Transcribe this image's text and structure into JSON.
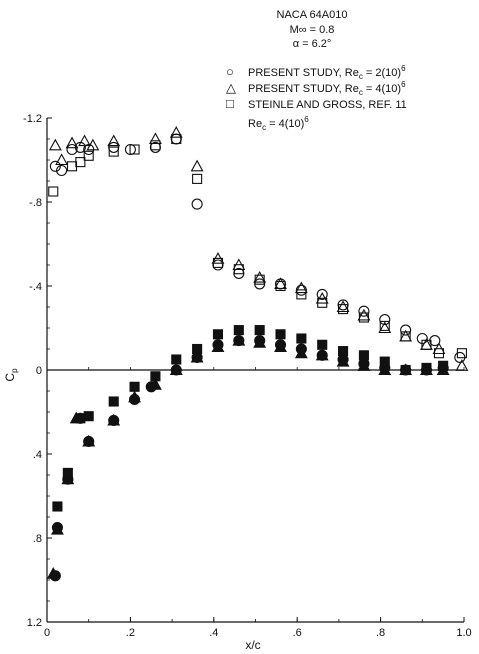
{
  "chart_data": {
    "type": "scatter",
    "title_lines": [
      "NACA 64A010",
      "M∞ = 0.8",
      "α = 6.2°"
    ],
    "xlabel": "x/c",
    "ylabel": "Cp",
    "xlim": [
      0,
      1.0
    ],
    "ylim": [
      1.2,
      -1.2
    ],
    "y_inverted": true,
    "x_ticks": [
      {
        "value": 0,
        "label": "0"
      },
      {
        "value": 0.2,
        "label": ".2"
      },
      {
        "value": 0.4,
        "label": ".4"
      },
      {
        "value": 0.6,
        "label": ".6"
      },
      {
        "value": 0.8,
        "label": ".8"
      },
      {
        "value": 1.0,
        "label": "1.0"
      }
    ],
    "y_ticks": [
      {
        "value": -1.2,
        "label": "-1.2"
      },
      {
        "value": -0.8,
        "label": "-.8"
      },
      {
        "value": -0.4,
        "label": "-.4"
      },
      {
        "value": 0,
        "label": "0"
      },
      {
        "value": 0.4,
        "label": ".4"
      },
      {
        "value": 0.8,
        "label": ".8"
      },
      {
        "value": 1.2,
        "label": "1.2"
      }
    ],
    "legend": [
      {
        "symbol": "○",
        "text": "PRESENT STUDY, Re",
        "sub": "c",
        "rest": " = 2(10)",
        "sup": "6"
      },
      {
        "symbol": "△",
        "text": "PRESENT STUDY, Re",
        "sub": "c",
        "rest": " = 4(10)",
        "sup": "6"
      },
      {
        "symbol": "□",
        "text": "STEINLE AND GROSS, REF. 11",
        "sub": "",
        "rest": "",
        "sup": ""
      },
      {
        "symbol": "",
        "text": "Re",
        "sub": "c",
        "rest": " = 4(10)",
        "sup": "6"
      }
    ],
    "legend_position": "top-right",
    "series": [
      {
        "name": "PRESENT STUDY, Re_c = 2(10)^6",
        "marker": "circle",
        "upper": [
          [
            0.02,
            -0.97
          ],
          [
            0.035,
            -0.95
          ],
          [
            0.06,
            -1.05
          ],
          [
            0.08,
            -1.06
          ],
          [
            0.1,
            -1.05
          ],
          [
            0.16,
            -1.06
          ],
          [
            0.2,
            -1.05
          ],
          [
            0.26,
            -1.06
          ],
          [
            0.31,
            -1.1
          ],
          [
            0.36,
            -0.79
          ],
          [
            0.41,
            -0.5
          ],
          [
            0.46,
            -0.46
          ],
          [
            0.51,
            -0.41
          ],
          [
            0.56,
            -0.41
          ],
          [
            0.61,
            -0.38
          ],
          [
            0.66,
            -0.36
          ],
          [
            0.71,
            -0.31
          ],
          [
            0.76,
            -0.28
          ],
          [
            0.81,
            -0.24
          ],
          [
            0.86,
            -0.19
          ],
          [
            0.9,
            -0.15
          ],
          [
            0.93,
            -0.14
          ],
          [
            0.99,
            -0.06
          ]
        ],
        "lower": [
          [
            0.02,
            0.98
          ],
          [
            0.025,
            0.75
          ],
          [
            0.05,
            0.52
          ],
          [
            0.08,
            0.23
          ],
          [
            0.1,
            0.34
          ],
          [
            0.16,
            0.24
          ],
          [
            0.21,
            0.14
          ],
          [
            0.25,
            0.08
          ],
          [
            0.31,
            0.0
          ],
          [
            0.36,
            -0.06
          ],
          [
            0.41,
            -0.12
          ],
          [
            0.46,
            -0.14
          ],
          [
            0.51,
            -0.14
          ],
          [
            0.56,
            -0.12
          ],
          [
            0.61,
            -0.1
          ],
          [
            0.66,
            -0.07
          ],
          [
            0.71,
            -0.05
          ],
          [
            0.76,
            -0.03
          ],
          [
            0.81,
            -0.01
          ],
          [
            0.86,
            0.0
          ],
          [
            0.91,
            0.0
          ],
          [
            0.95,
            -0.01
          ]
        ]
      },
      {
        "name": "PRESENT STUDY, Re_c = 4(10)^6",
        "marker": "triangle",
        "upper": [
          [
            0.02,
            -1.07
          ],
          [
            0.035,
            -1.0
          ],
          [
            0.06,
            -1.08
          ],
          [
            0.09,
            -1.09
          ],
          [
            0.11,
            -1.07
          ],
          [
            0.16,
            -1.09
          ],
          [
            0.26,
            -1.1
          ],
          [
            0.31,
            -1.13
          ],
          [
            0.36,
            -0.97
          ],
          [
            0.41,
            -0.53
          ],
          [
            0.46,
            -0.5
          ],
          [
            0.51,
            -0.44
          ],
          [
            0.56,
            -0.41
          ],
          [
            0.61,
            -0.39
          ],
          [
            0.66,
            -0.34
          ],
          [
            0.71,
            -0.3
          ],
          [
            0.76,
            -0.26
          ],
          [
            0.81,
            -0.2
          ],
          [
            0.86,
            -0.16
          ],
          [
            0.91,
            -0.12
          ],
          [
            0.94,
            -0.1
          ],
          [
            0.995,
            -0.02
          ]
        ],
        "lower": [
          [
            0.015,
            0.97
          ],
          [
            0.025,
            0.76
          ],
          [
            0.05,
            0.52
          ],
          [
            0.07,
            0.23
          ],
          [
            0.1,
            0.34
          ],
          [
            0.16,
            0.24
          ],
          [
            0.21,
            0.13
          ],
          [
            0.26,
            0.07
          ],
          [
            0.31,
            0.0
          ],
          [
            0.36,
            -0.06
          ],
          [
            0.41,
            -0.11
          ],
          [
            0.46,
            -0.14
          ],
          [
            0.51,
            -0.13
          ],
          [
            0.56,
            -0.11
          ],
          [
            0.61,
            -0.08
          ],
          [
            0.66,
            -0.07
          ],
          [
            0.71,
            -0.04
          ],
          [
            0.76,
            -0.02
          ],
          [
            0.81,
            0.0
          ],
          [
            0.86,
            0.0
          ],
          [
            0.91,
            0.0
          ],
          [
            0.95,
            0.0
          ]
        ]
      },
      {
        "name": "STEINLE AND GROSS, REF. 11",
        "marker": "square",
        "upper": [
          [
            0.015,
            -0.85
          ],
          [
            0.06,
            -0.97
          ],
          [
            0.08,
            -0.99
          ],
          [
            0.1,
            -1.02
          ],
          [
            0.16,
            -1.04
          ],
          [
            0.21,
            -1.05
          ],
          [
            0.26,
            -1.07
          ],
          [
            0.31,
            -1.1
          ],
          [
            0.36,
            -0.91
          ],
          [
            0.41,
            -0.51
          ],
          [
            0.46,
            -0.48
          ],
          [
            0.51,
            -0.43
          ],
          [
            0.56,
            -0.4
          ],
          [
            0.61,
            -0.36
          ],
          [
            0.66,
            -0.32
          ],
          [
            0.71,
            -0.29
          ],
          [
            0.76,
            -0.25
          ],
          [
            0.81,
            -0.21
          ],
          [
            0.86,
            -0.16
          ],
          [
            0.91,
            -0.12
          ],
          [
            0.94,
            -0.08
          ],
          [
            0.995,
            -0.08
          ]
        ],
        "lower": [
          [
            0.025,
            0.65
          ],
          [
            0.05,
            0.49
          ],
          [
            0.08,
            0.23
          ],
          [
            0.1,
            0.22
          ],
          [
            0.16,
            0.15
          ],
          [
            0.21,
            0.08
          ],
          [
            0.26,
            0.03
          ],
          [
            0.31,
            -0.05
          ],
          [
            0.36,
            -0.1
          ],
          [
            0.41,
            -0.17
          ],
          [
            0.46,
            -0.19
          ],
          [
            0.51,
            -0.19
          ],
          [
            0.56,
            -0.17
          ],
          [
            0.61,
            -0.15
          ],
          [
            0.66,
            -0.12
          ],
          [
            0.71,
            -0.09
          ],
          [
            0.76,
            -0.07
          ],
          [
            0.81,
            -0.04
          ],
          [
            0.86,
            0.0
          ],
          [
            0.91,
            -0.01
          ],
          [
            0.95,
            -0.02
          ]
        ]
      }
    ]
  }
}
